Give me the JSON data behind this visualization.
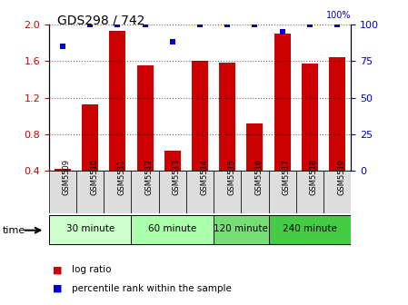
{
  "title": "GDS298 / 742",
  "samples": [
    "GSM5509",
    "GSM5510",
    "GSM5511",
    "GSM5512",
    "GSM5513",
    "GSM5514",
    "GSM5515",
    "GSM5516",
    "GSM5517",
    "GSM5518",
    "GSM5519"
  ],
  "log_ratio": [
    0.42,
    1.13,
    1.93,
    1.55,
    0.62,
    1.6,
    1.58,
    0.92,
    1.9,
    1.57,
    1.64
  ],
  "percentile_rank": [
    85,
    100,
    100,
    100,
    88,
    100,
    100,
    100,
    95,
    100,
    100
  ],
  "bar_color": "#cc0000",
  "dot_color": "#0000cc",
  "ylim_left": [
    0.4,
    2.0
  ],
  "ylim_right": [
    0,
    100
  ],
  "yticks_left": [
    0.4,
    0.8,
    1.2,
    1.6,
    2.0
  ],
  "yticks_right": [
    0,
    25,
    50,
    75,
    100
  ],
  "groups": [
    {
      "label": "30 minute",
      "start": 0,
      "end": 2,
      "color": "#ccffcc"
    },
    {
      "label": "60 minute",
      "start": 3,
      "end": 5,
      "color": "#aaffaa"
    },
    {
      "label": "120 minute",
      "start": 6,
      "end": 7,
      "color": "#77dd77"
    },
    {
      "label": "240 minute",
      "start": 8,
      "end": 10,
      "color": "#44cc44"
    }
  ],
  "time_label": "time",
  "legend_bar_label": "log ratio",
  "legend_dot_label": "percentile rank within the sample",
  "background_color": "#ffffff",
  "bar_baseline": 0.4,
  "xtick_bg": "#dddddd"
}
